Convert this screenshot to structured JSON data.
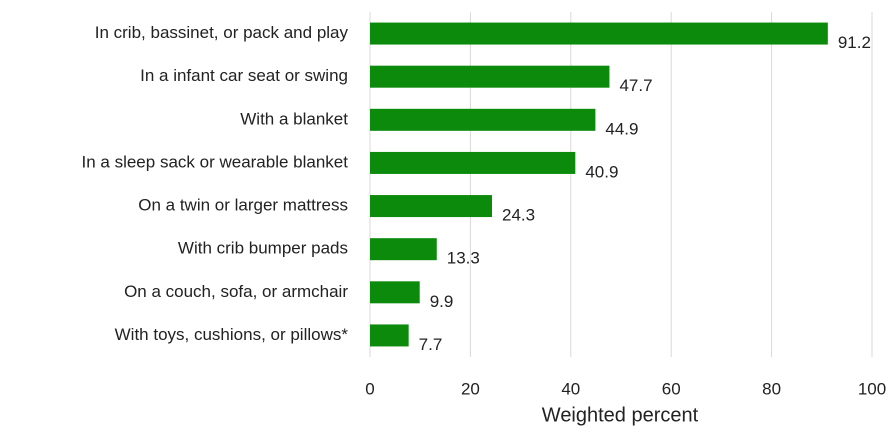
{
  "chart_data": {
    "type": "hbar",
    "categories": [
      "In crib, bassinet, or pack and play",
      "In a infant car seat or swing",
      "With a blanket",
      "In a sleep sack or wearable blanket",
      "On a twin or larger mattress",
      "With crib bumper pads",
      "On a couch, sofa, or armchair",
      "With toys, cushions, or pillows*"
    ],
    "values": [
      91.2,
      47.7,
      44.9,
      40.9,
      24.3,
      13.3,
      9.9,
      7.7
    ],
    "color": "#0b8a0b",
    "xlabel": "Weighted percent",
    "xlim": [
      0,
      100
    ],
    "xticks": [
      0,
      20,
      40,
      60,
      80,
      100
    ],
    "grid": true
  }
}
